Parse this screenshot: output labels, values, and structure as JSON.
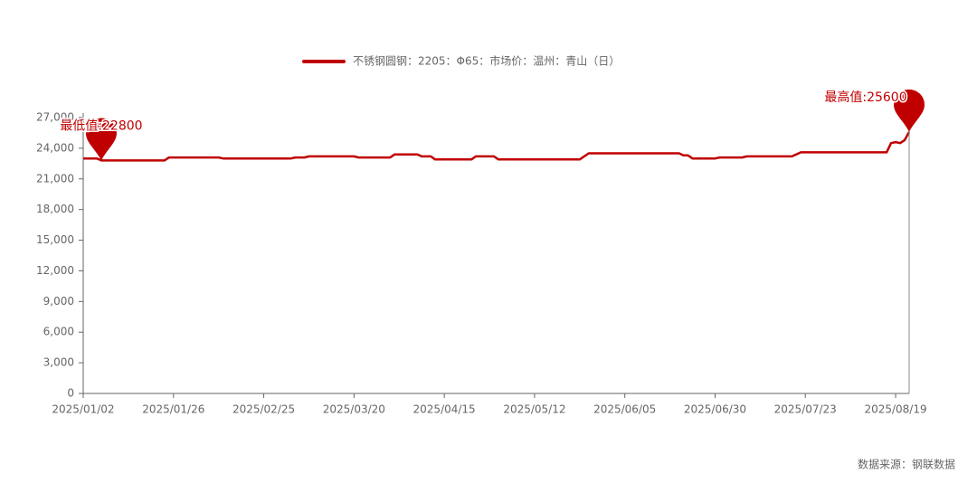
{
  "chart_data": {
    "type": "line",
    "categories": [
      "2025/01/02",
      null,
      null,
      null,
      null,
      null,
      null,
      null,
      null,
      null,
      null,
      null,
      null,
      null,
      null,
      null,
      null,
      null,
      null,
      null,
      "2025/01/26",
      null,
      null,
      null,
      null,
      null,
      null,
      null,
      null,
      null,
      null,
      null,
      null,
      null,
      null,
      null,
      null,
      null,
      null,
      null,
      "2025/02/25",
      null,
      null,
      null,
      null,
      null,
      null,
      null,
      null,
      null,
      null,
      null,
      null,
      null,
      null,
      null,
      null,
      null,
      null,
      null,
      "2025/03/20",
      null,
      null,
      null,
      null,
      null,
      null,
      null,
      null,
      null,
      null,
      null,
      null,
      null,
      null,
      null,
      null,
      null,
      null,
      null,
      "2025/04/15",
      null,
      null,
      null,
      null,
      null,
      null,
      null,
      null,
      null,
      null,
      null,
      null,
      null,
      null,
      null,
      null,
      null,
      null,
      null,
      "2025/05/12",
      null,
      null,
      null,
      null,
      null,
      null,
      null,
      null,
      null,
      null,
      null,
      null,
      null,
      null,
      null,
      null,
      null,
      null,
      null,
      "2025/06/05",
      null,
      null,
      null,
      null,
      null,
      null,
      null,
      null,
      null,
      null,
      null,
      null,
      null,
      null,
      null,
      null,
      null,
      null,
      null,
      "2025/06/30",
      null,
      null,
      null,
      null,
      null,
      null,
      null,
      null,
      null,
      null,
      null,
      null,
      null,
      null,
      null,
      null,
      null,
      null,
      null,
      "2025/07/23",
      null,
      null,
      null,
      null,
      null,
      null,
      null,
      null,
      null,
      null,
      null,
      null,
      null,
      null,
      null,
      null,
      null,
      null,
      null,
      "2025/08/19",
      null,
      null,
      null
    ],
    "series": [
      {
        "name": "不锈钢圆钢：2205：Φ65：市场价：温州：青山（日）",
        "color": "#c00000",
        "values": [
          23000,
          23000,
          23000,
          23000,
          22800,
          22800,
          22800,
          22800,
          22800,
          22800,
          22800,
          22800,
          22800,
          22800,
          22800,
          22800,
          22800,
          22800,
          22800,
          23100,
          23100,
          23100,
          23100,
          23100,
          23100,
          23100,
          23100,
          23100,
          23100,
          23100,
          23100,
          23000,
          23000,
          23000,
          23000,
          23000,
          23000,
          23000,
          23000,
          23000,
          23000,
          23000,
          23000,
          23000,
          23000,
          23000,
          23000,
          23100,
          23100,
          23100,
          23200,
          23200,
          23200,
          23200,
          23200,
          23200,
          23200,
          23200,
          23200,
          23200,
          23200,
          23100,
          23100,
          23100,
          23100,
          23100,
          23100,
          23100,
          23100,
          23400,
          23400,
          23400,
          23400,
          23400,
          23400,
          23200,
          23200,
          23200,
          22900,
          22900,
          22900,
          22900,
          22900,
          22900,
          22900,
          22900,
          22900,
          23200,
          23200,
          23200,
          23200,
          23200,
          22900,
          22900,
          22900,
          22900,
          22900,
          22900,
          22900,
          22900,
          22900,
          22900,
          22900,
          22900,
          22900,
          22900,
          22900,
          22900,
          22900,
          22900,
          22900,
          23200,
          23500,
          23500,
          23500,
          23500,
          23500,
          23500,
          23500,
          23500,
          23500,
          23500,
          23500,
          23500,
          23500,
          23500,
          23500,
          23500,
          23500,
          23500,
          23500,
          23500,
          23500,
          23300,
          23300,
          23000,
          23000,
          23000,
          23000,
          23000,
          23000,
          23100,
          23100,
          23100,
          23100,
          23100,
          23100,
          23200,
          23200,
          23200,
          23200,
          23200,
          23200,
          23200,
          23200,
          23200,
          23200,
          23200,
          23400,
          23600,
          23600,
          23600,
          23600,
          23600,
          23600,
          23600,
          23600,
          23600,
          23600,
          23600,
          23600,
          23600,
          23600,
          23600,
          23600,
          23600,
          23600,
          23600,
          23600,
          24500,
          24600,
          24500,
          24800,
          25600
        ]
      }
    ],
    "markers": [
      {
        "label": "最低值:22800",
        "value": 22800
      },
      {
        "label": "最高值:25600",
        "value": 25600
      }
    ],
    "ylim": [
      0,
      27000
    ],
    "yticks": [
      0,
      {
        "value": 3000,
        "label": "3,000"
      },
      {
        "value": 6000,
        "label": "6,000"
      },
      {
        "value": 9000,
        "label": "9,000"
      },
      {
        "value": 12000,
        "label": "12,000"
      },
      {
        "value": 15000,
        "label": "15,000"
      },
      {
        "value": 18000,
        "label": "18,000"
      },
      {
        "value": 21000,
        "label": "21,000"
      },
      {
        "value": 24000,
        "label": "24,000"
      },
      {
        "value": 27000,
        "label": "27,000"
      }
    ],
    "source": "数据来源：钢联数据"
  }
}
